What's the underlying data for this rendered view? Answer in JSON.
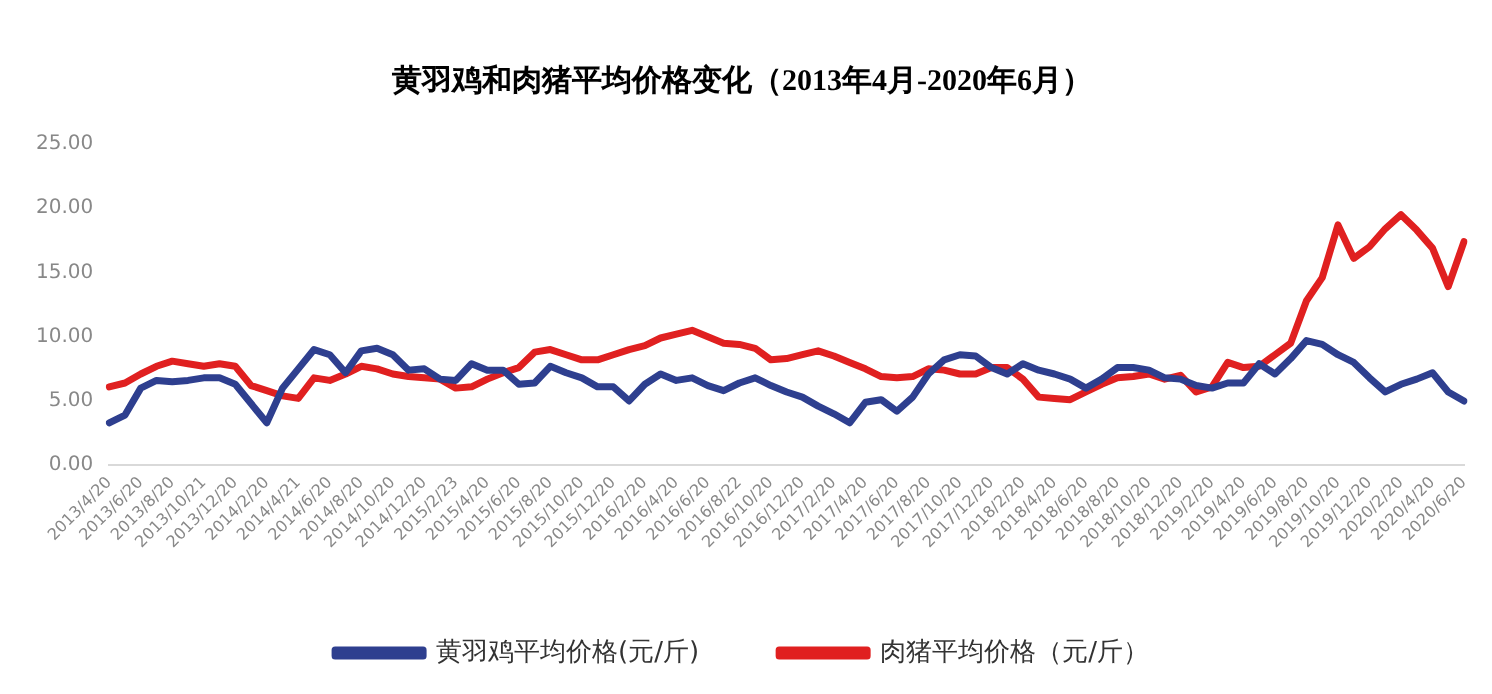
{
  "chart_data": {
    "type": "line",
    "title": "黄羽鸡和肉猪平均价格变化（2013年4月-2020年6月）",
    "categories": [
      "2013/4/20",
      null,
      "2013/6/20",
      null,
      "2013/8/20",
      null,
      "2013/10/21",
      null,
      "2013/12/20",
      null,
      "2014/2/20",
      null,
      "2014/4/21",
      null,
      "2014/6/20",
      null,
      "2014/8/20",
      null,
      "2014/10/20",
      null,
      "2014/12/20",
      null,
      "2015/2/23",
      null,
      "2015/4/20",
      null,
      "2015/6/20",
      null,
      "2015/8/20",
      null,
      "2015/10/20",
      null,
      "2015/12/20",
      null,
      "2016/2/20",
      null,
      "2016/4/20",
      null,
      "2016/6/20",
      null,
      "2016/8/22",
      null,
      "2016/10/20",
      null,
      "2016/12/20",
      null,
      "2017/2/20",
      null,
      "2017/4/20",
      null,
      "2017/6/20",
      null,
      "2017/8/20",
      null,
      "2017/10/20",
      null,
      "2017/12/20",
      null,
      "2018/2/20",
      null,
      "2018/4/20",
      null,
      "2018/6/20",
      null,
      "2018/8/20",
      null,
      "2018/10/20",
      null,
      "2018/12/20",
      null,
      "2019/2/20",
      null,
      "2019/4/20",
      null,
      "2019/6/20",
      null,
      "2019/8/20",
      null,
      "2019/10/20",
      null,
      "2019/12/20",
      null,
      "2020/2/20",
      null,
      "2020/4/20",
      null,
      "2020/6/20"
    ],
    "series": [
      {
        "name": "黄羽鸡平均价格(元/斤)",
        "color": "#2e3f8f",
        "values": [
          3.3,
          3.9,
          6.0,
          6.6,
          6.5,
          6.6,
          6.8,
          6.8,
          6.3,
          4.8,
          3.3,
          6.0,
          7.5,
          9.0,
          8.6,
          7.2,
          8.9,
          9.1,
          8.6,
          7.4,
          7.5,
          6.7,
          6.6,
          7.9,
          7.4,
          7.4,
          6.3,
          6.4,
          7.7,
          7.2,
          6.8,
          6.1,
          6.1,
          5.0,
          6.3,
          7.1,
          6.6,
          6.8,
          6.2,
          5.8,
          6.4,
          6.8,
          6.2,
          5.7,
          5.3,
          4.6,
          4.0,
          3.3,
          4.9,
          5.1,
          4.2,
          5.3,
          7.1,
          8.2,
          8.6,
          8.5,
          7.6,
          7.1,
          7.9,
          7.4,
          7.1,
          6.7,
          6.0,
          6.7,
          7.6,
          7.6,
          7.4,
          6.8,
          6.7,
          6.2,
          6.0,
          6.4,
          6.4,
          7.9,
          7.1,
          8.3,
          9.7,
          9.4,
          8.6,
          8.0,
          6.8,
          5.7,
          6.3,
          6.7,
          7.2,
          5.7,
          5.0
        ]
      },
      {
        "name": "肉猪平均价格（元/斤）",
        "color": "#e02020",
        "values": [
          6.1,
          6.4,
          7.1,
          7.7,
          8.1,
          7.9,
          7.7,
          7.9,
          7.7,
          6.2,
          5.8,
          5.4,
          5.2,
          6.8,
          6.6,
          7.1,
          7.7,
          7.5,
          7.1,
          6.9,
          6.8,
          6.7,
          6.0,
          6.1,
          6.7,
          7.2,
          7.6,
          8.8,
          9.0,
          8.6,
          8.2,
          8.2,
          8.6,
          9.0,
          9.3,
          9.9,
          10.2,
          10.5,
          10.0,
          9.5,
          9.4,
          9.1,
          8.2,
          8.3,
          8.6,
          8.9,
          8.5,
          8.0,
          7.5,
          6.9,
          6.8,
          6.9,
          7.5,
          7.4,
          7.1,
          7.1,
          7.6,
          7.6,
          6.7,
          5.3,
          5.2,
          5.1,
          5.7,
          6.3,
          6.8,
          6.9,
          7.1,
          6.7,
          7.0,
          5.7,
          6.1,
          8.0,
          7.6,
          7.7,
          8.6,
          9.5,
          12.8,
          14.6,
          18.7,
          16.1,
          17.0,
          18.4,
          19.5,
          18.3,
          16.9,
          13.9,
          17.4
        ]
      }
    ],
    "ylim": [
      0,
      25
    ],
    "yticks": [
      {
        "value": 0,
        "label": "0.00"
      },
      {
        "value": 5,
        "label": "5.00"
      },
      {
        "value": 10,
        "label": "10.00"
      },
      {
        "value": 15,
        "label": "15.00"
      },
      {
        "value": 20,
        "label": "20.00"
      },
      {
        "value": 25,
        "label": "25.00"
      }
    ],
    "grid": false,
    "legend": "bottom",
    "marker": "none",
    "line_style": "solid"
  }
}
